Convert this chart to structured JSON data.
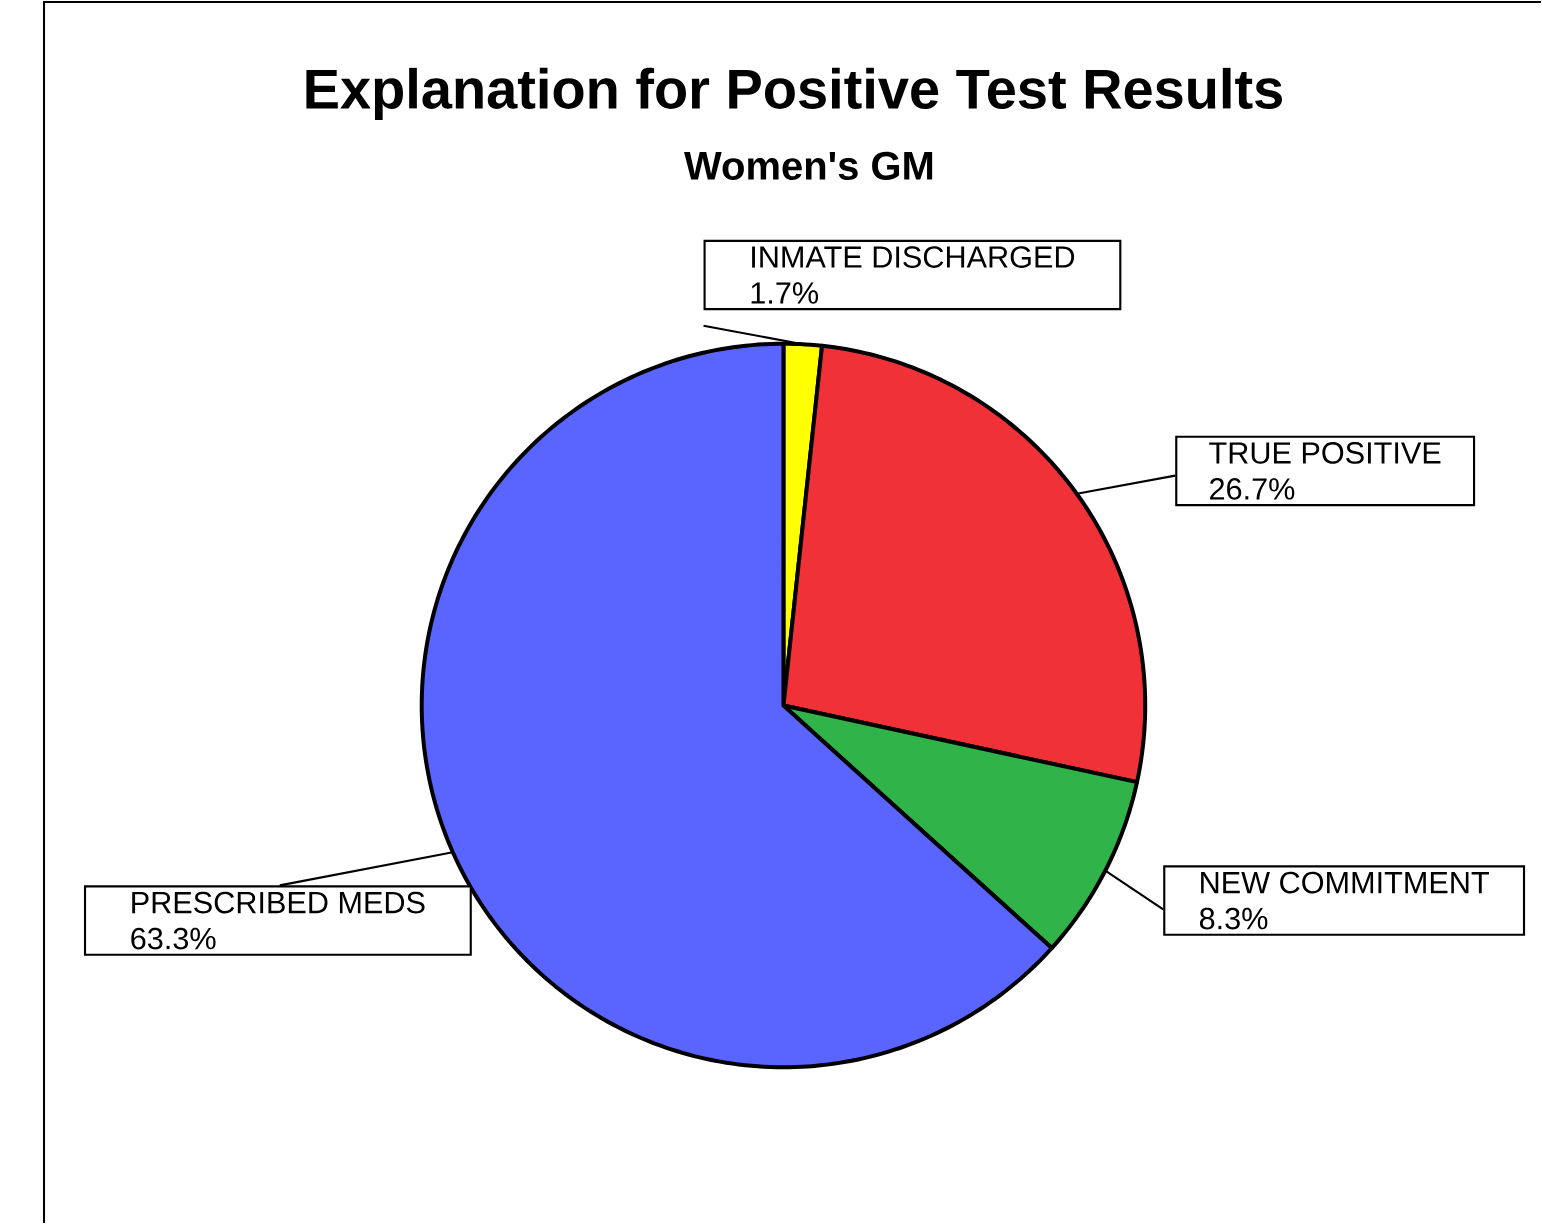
{
  "chart_data": {
    "type": "pie",
    "title": "Explanation for Positive Test Results",
    "subtitle": "Women's GM",
    "categories": [
      "INMATE DISCHARGED",
      "TRUE POSITIVE",
      "NEW COMMITMENT",
      "PRESCRIBED MEDS"
    ],
    "values": [
      1.7,
      26.7,
      8.3,
      63.3
    ],
    "colors": [
      "#ffff00",
      "#f03238",
      "#30b44a",
      "#5a64ff"
    ],
    "value_labels": [
      "1.7%",
      "26.7%",
      "8.3%",
      "63.3%"
    ]
  }
}
